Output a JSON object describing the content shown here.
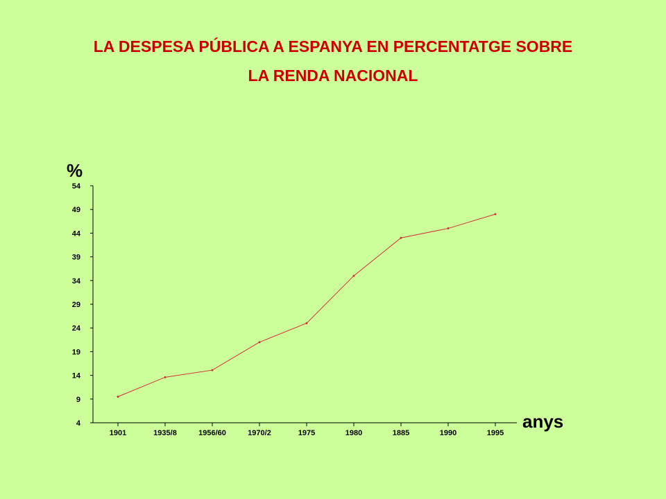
{
  "title_line1": "LA DESPESA PÚBLICA A ESPANYA EN PERCENTATGE SOBRE",
  "title_line2": "LA  RENDA NACIONAL",
  "colors": {
    "background": "#ccff99",
    "title": "#cc0000",
    "line": "#cc3333",
    "axis": "#000000"
  },
  "chart_data": {
    "type": "line",
    "title": "LA DESPESA PÚBLICA A ESPANYA EN PERCENTATGE SOBRE LA  RENDA NACIONAL",
    "ylabel": "%",
    "xlabel": "anys",
    "categories": [
      "1901",
      "1935/8",
      "1956/60",
      "1970/2",
      "1975",
      "1980",
      "1885",
      "1990",
      "1995"
    ],
    "y_ticks": [
      4,
      9,
      14,
      19,
      24,
      29,
      34,
      39,
      44,
      49,
      54
    ],
    "ylim": [
      4,
      54
    ],
    "grid": false,
    "series": [
      {
        "values": [
          9.5,
          13.6,
          15.1,
          21.0,
          25.0,
          35.0,
          43.0,
          45.0,
          48.0
        ]
      }
    ]
  }
}
